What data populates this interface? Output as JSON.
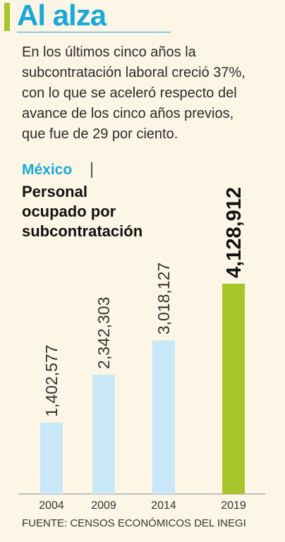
{
  "header": {
    "title": "Al alza",
    "intro_lines": [
      "En los últimos cinco años la",
      "subcontratación laboral creció 37%,",
      "con lo que se aceleró respecto del",
      "avance de los cinco años previos,",
      "que fue de 29 por ciento."
    ]
  },
  "chart_data": {
    "type": "bar",
    "region": "México",
    "title_lines": [
      "Personal",
      "ocupado por",
      "subcontratación"
    ],
    "categories": [
      "2004",
      "2009",
      "2014",
      "2019"
    ],
    "values": [
      1402577,
      2342303,
      3018127,
      4128912
    ],
    "value_labels": [
      "1,402,577",
      "2,342,303",
      "3,018,127",
      "4,128,912"
    ],
    "highlight_index": 3,
    "ylim": [
      0,
      4128912
    ],
    "colors": {
      "bar": "#c8e8f8",
      "highlight": "#a8c52a",
      "accent": "#19a8d8"
    },
    "source": "FUENTE: CENSOS ECONÓMICOS DEL INEGI"
  }
}
